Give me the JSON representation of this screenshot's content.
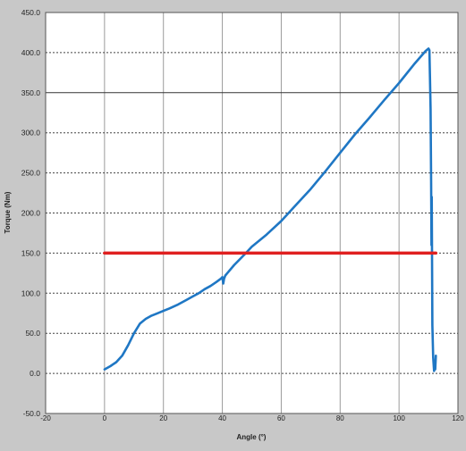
{
  "chart_data": {
    "type": "line",
    "title": "",
    "xlabel": "Angle (°)",
    "ylabel": "Torque (Nm)",
    "xlim": [
      -20,
      120
    ],
    "ylim": [
      -50,
      450
    ],
    "xticks": [
      -20,
      0,
      20,
      40,
      60,
      80,
      100,
      120
    ],
    "yticks": [
      -50,
      0,
      50,
      100,
      150,
      200,
      250,
      300,
      350,
      400,
      450
    ],
    "xtick_labels": [
      "-20",
      "0",
      "20",
      "40",
      "60",
      "80",
      "100",
      "120"
    ],
    "ytick_labels": [
      "-50.0",
      "0.0",
      "50.0",
      "100.0",
      "150.0",
      "200.0",
      "250.0",
      "300.0",
      "350.0",
      "400.0",
      "450.0"
    ],
    "grid": true,
    "legend": "none",
    "series": [
      {
        "color": "#1f77c4",
        "x": [
          0,
          2,
          4,
          6,
          8,
          10,
          12,
          14,
          16,
          18,
          20,
          22,
          25,
          28,
          30,
          32,
          34,
          36,
          38,
          39.5,
          40,
          40.3,
          40.6,
          41,
          44,
          48,
          50,
          55,
          60,
          65,
          70,
          75,
          80,
          85,
          90,
          95,
          100,
          105,
          109,
          110,
          110.3,
          110.5,
          110.7,
          110.9,
          111.0,
          111.1,
          111.3,
          111.6,
          111.9,
          112.1,
          112.3,
          112.5
        ],
        "y": [
          5,
          9,
          14,
          22,
          35,
          50,
          62,
          68,
          72,
          75,
          78,
          81,
          86,
          92,
          96,
          100,
          105,
          109,
          114,
          118,
          120,
          112,
          118,
          122,
          135,
          150,
          158,
          173,
          190,
          210,
          230,
          252,
          275,
          298,
          319,
          341,
          362,
          385,
          402,
          405,
          403,
          370,
          330,
          240,
          160,
          220,
          60,
          20,
          3,
          10,
          5,
          22
        ]
      },
      {
        "color": "#e02020",
        "x": [
          0,
          112.5
        ],
        "y": [
          150,
          150
        ]
      }
    ]
  }
}
